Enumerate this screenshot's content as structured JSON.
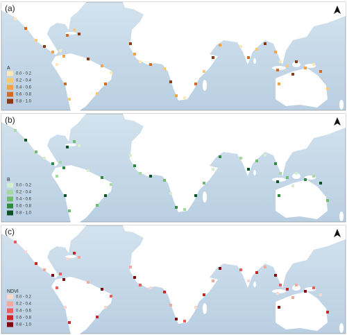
{
  "panels": [
    {
      "label": "(a)",
      "legend": {
        "title": "A",
        "classes": [
          {
            "label": "0.0 - 0.2",
            "color": "#fde9b5"
          },
          {
            "label": "0.2 - 0.4",
            "color": "#f9c979"
          },
          {
            "label": "0.4 - 0.6",
            "color": "#f2a14a"
          },
          {
            "label": "0.6 - 0.8",
            "color": "#d46b1e"
          },
          {
            "label": "0.8 - 1.0",
            "color": "#8c3a0e"
          }
        ]
      }
    },
    {
      "label": "(b)",
      "legend": {
        "title": "B",
        "classes": [
          {
            "label": "0.0 - 0.2",
            "color": "#d4eed0"
          },
          {
            "label": "0.2 - 0.4",
            "color": "#a6d9a0"
          },
          {
            "label": "0.4 - 0.6",
            "color": "#6cbd6c"
          },
          {
            "label": "0.6 - 0.8",
            "color": "#2e8b3e"
          },
          {
            "label": "0.8 - 1.0",
            "color": "#0b5224"
          }
        ]
      }
    },
    {
      "label": "(c)",
      "legend": {
        "title": "NDVI",
        "classes": [
          {
            "label": "0.0 - 0.2",
            "color": "#fbd8cf"
          },
          {
            "label": "0.2 - 0.4",
            "color": "#f5a898"
          },
          {
            "label": "0.4 - 0.6",
            "color": "#e8605a"
          },
          {
            "label": "0.6 - 0.8",
            "color": "#c82824"
          },
          {
            "label": "0.8 - 1.0",
            "color": "#7a0c12"
          }
        ]
      }
    }
  ]
}
